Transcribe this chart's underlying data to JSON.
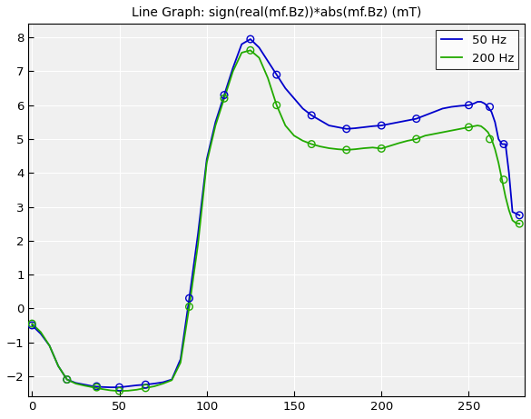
{
  "title": "Line Graph: sign(real(mf.Bz))*abs(mf.Bz) (mT)",
  "xlim": [
    -2,
    282
  ],
  "ylim": [
    -2.6,
    8.4
  ],
  "xticks": [
    0,
    50,
    100,
    150,
    200,
    250
  ],
  "yticks": [
    -2,
    -1,
    0,
    1,
    2,
    3,
    4,
    5,
    6,
    7,
    8
  ],
  "line_50hz_color": "#0000cc",
  "line_200hz_color": "#22aa00",
  "legend_labels": [
    "50 Hz",
    "200 Hz"
  ],
  "bg_color": "#f0f0f0",
  "line_50hz_x": [
    0,
    5,
    10,
    15,
    20,
    25,
    30,
    35,
    40,
    45,
    50,
    55,
    60,
    65,
    70,
    75,
    80,
    85,
    90,
    95,
    100,
    105,
    110,
    115,
    120,
    125,
    130,
    135,
    140,
    145,
    150,
    155,
    160,
    165,
    170,
    175,
    180,
    185,
    190,
    195,
    200,
    205,
    210,
    215,
    220,
    225,
    230,
    235,
    240,
    245,
    250,
    253,
    255,
    257,
    259,
    261,
    263,
    265,
    267,
    269,
    271,
    273,
    275,
    277,
    279
  ],
  "line_50hz_y": [
    -0.5,
    -0.75,
    -1.1,
    -1.7,
    -2.1,
    -2.2,
    -2.25,
    -2.3,
    -2.32,
    -2.33,
    -2.33,
    -2.3,
    -2.27,
    -2.25,
    -2.22,
    -2.18,
    -2.1,
    -1.5,
    0.3,
    2.2,
    4.4,
    5.5,
    6.3,
    7.1,
    7.8,
    7.95,
    7.7,
    7.3,
    6.9,
    6.5,
    6.2,
    5.9,
    5.7,
    5.55,
    5.4,
    5.35,
    5.3,
    5.32,
    5.35,
    5.38,
    5.4,
    5.45,
    5.5,
    5.55,
    5.6,
    5.7,
    5.8,
    5.9,
    5.95,
    5.98,
    6.0,
    6.05,
    6.1,
    6.1,
    6.05,
    5.95,
    5.8,
    5.5,
    5.0,
    4.85,
    4.85,
    4.0,
    2.85,
    2.8,
    2.75
  ],
  "line_200hz_x": [
    0,
    5,
    10,
    15,
    20,
    25,
    30,
    35,
    40,
    45,
    50,
    55,
    60,
    65,
    70,
    75,
    80,
    85,
    90,
    95,
    100,
    105,
    110,
    115,
    120,
    125,
    130,
    135,
    140,
    145,
    150,
    155,
    160,
    165,
    170,
    175,
    180,
    185,
    190,
    195,
    200,
    205,
    210,
    215,
    220,
    225,
    230,
    235,
    240,
    245,
    250,
    253,
    255,
    257,
    259,
    261,
    263,
    265,
    267,
    269,
    271,
    273,
    275,
    277,
    279
  ],
  "line_200hz_y": [
    -0.45,
    -0.7,
    -1.1,
    -1.7,
    -2.1,
    -2.22,
    -2.28,
    -2.33,
    -2.38,
    -2.42,
    -2.44,
    -2.43,
    -2.4,
    -2.35,
    -2.3,
    -2.22,
    -2.12,
    -1.6,
    0.05,
    1.9,
    4.3,
    5.4,
    6.2,
    7.0,
    7.55,
    7.62,
    7.4,
    6.8,
    6.0,
    5.4,
    5.1,
    4.95,
    4.85,
    4.78,
    4.73,
    4.7,
    4.68,
    4.7,
    4.73,
    4.75,
    4.72,
    4.8,
    4.88,
    4.95,
    5.0,
    5.1,
    5.15,
    5.2,
    5.25,
    5.3,
    5.35,
    5.38,
    5.4,
    5.38,
    5.3,
    5.2,
    5.0,
    4.7,
    4.3,
    3.8,
    3.3,
    2.9,
    2.6,
    2.52,
    2.5
  ],
  "scatter_50hz_x": [
    0,
    20,
    37,
    50,
    65,
    90,
    110,
    125,
    140,
    160,
    180,
    200,
    220,
    250,
    262,
    270,
    279
  ],
  "scatter_50hz_y": [
    -0.5,
    -2.1,
    -2.3,
    -2.33,
    -2.25,
    0.3,
    6.3,
    7.95,
    6.9,
    5.7,
    5.3,
    5.4,
    5.6,
    6.0,
    5.95,
    4.85,
    2.75
  ],
  "scatter_200hz_x": [
    0,
    20,
    37,
    50,
    65,
    90,
    110,
    125,
    140,
    160,
    180,
    200,
    220,
    250,
    262,
    270,
    279
  ],
  "scatter_200hz_y": [
    -0.45,
    -2.1,
    -2.33,
    -2.44,
    -2.35,
    0.05,
    6.2,
    7.62,
    6.0,
    4.85,
    4.68,
    4.72,
    5.0,
    5.35,
    5.0,
    3.8,
    2.5
  ]
}
